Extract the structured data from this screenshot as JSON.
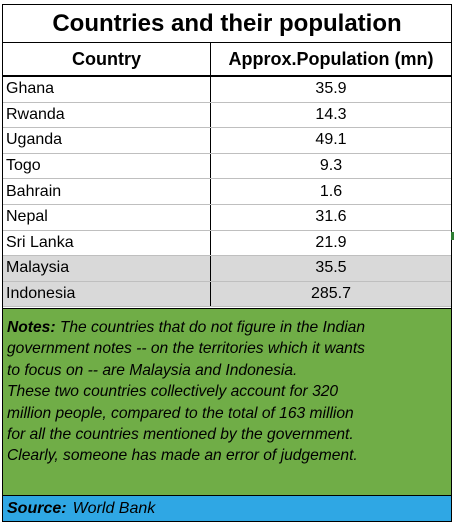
{
  "chart_data": {
    "type": "table",
    "title": "Countries and their population",
    "columns": [
      "Country",
      "Approx.Population (mn)"
    ],
    "rows": [
      {
        "country": "Ghana",
        "population": "35.9",
        "highlighted": false
      },
      {
        "country": "Rwanda",
        "population": "14.3",
        "highlighted": false
      },
      {
        "country": "Uganda",
        "population": "49.1",
        "highlighted": false
      },
      {
        "country": "Togo",
        "population": "9.3",
        "highlighted": false
      },
      {
        "country": "Bahrain",
        "population": "1.6",
        "highlighted": false
      },
      {
        "country": "Nepal",
        "population": "31.6",
        "highlighted": false
      },
      {
        "country": "Sri Lanka",
        "population": "21.9",
        "highlighted": false
      },
      {
        "country": "Malaysia",
        "population": "35.5",
        "highlighted": true
      },
      {
        "country": "Indonesia",
        "population": "285.7",
        "highlighted": true
      }
    ]
  },
  "notes": {
    "label": "Notes:",
    "lines": [
      "The countries that do not figure in the Indian",
      "government notes --  on the territories which it wants",
      "to focus on  -- are Malaysia and Indonesia.",
      "These two countries collectively account for 320",
      "million   people, compared to the total of 163 million",
      "for all the countries mentioned by the government.",
      "Clearly, someone has made an error of judgement."
    ]
  },
  "source": {
    "label": "Source:",
    "text": "World Bank"
  },
  "colors": {
    "notes_background": "#70ad47",
    "source_background": "#2fa7e4",
    "highlight_row": "#d9d9d9"
  }
}
